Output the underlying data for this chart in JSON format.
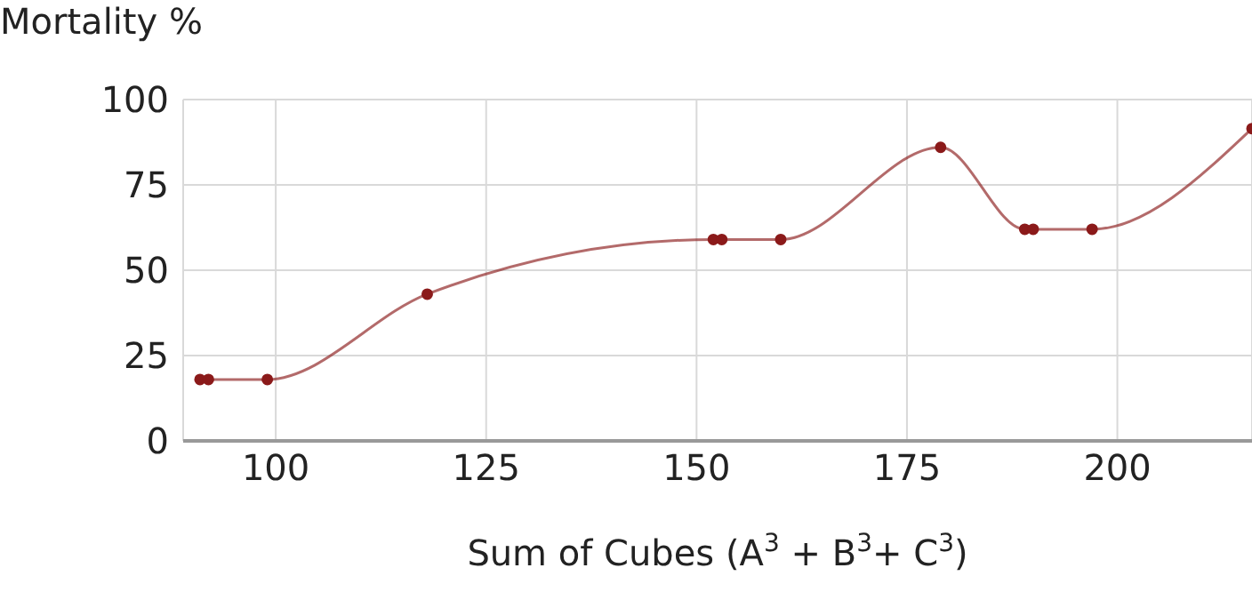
{
  "chart_data": {
    "type": "line",
    "ylabel": "Mortality %",
    "xlabel": "Sum of Cubes (A$^{3}$ + B$^{3}$+ C$^{3}$)",
    "x": [
      91,
      92,
      99,
      118,
      152,
      153,
      160,
      179,
      189,
      190,
      197,
      216
    ],
    "series": [
      {
        "color": "#8b1a1a",
        "values": [
          18,
          18,
          18,
          43,
          59,
          59,
          59,
          86,
          62,
          62,
          62,
          91.5
        ]
      }
    ],
    "xlim": [
      89,
      216
    ],
    "xticks": [
      100,
      125,
      150,
      175,
      200
    ],
    "ylim": [
      0,
      100
    ],
    "yticks": [
      0,
      25,
      50,
      75,
      100
    ],
    "grid": true,
    "marker": "circle",
    "line_style": "solid"
  }
}
